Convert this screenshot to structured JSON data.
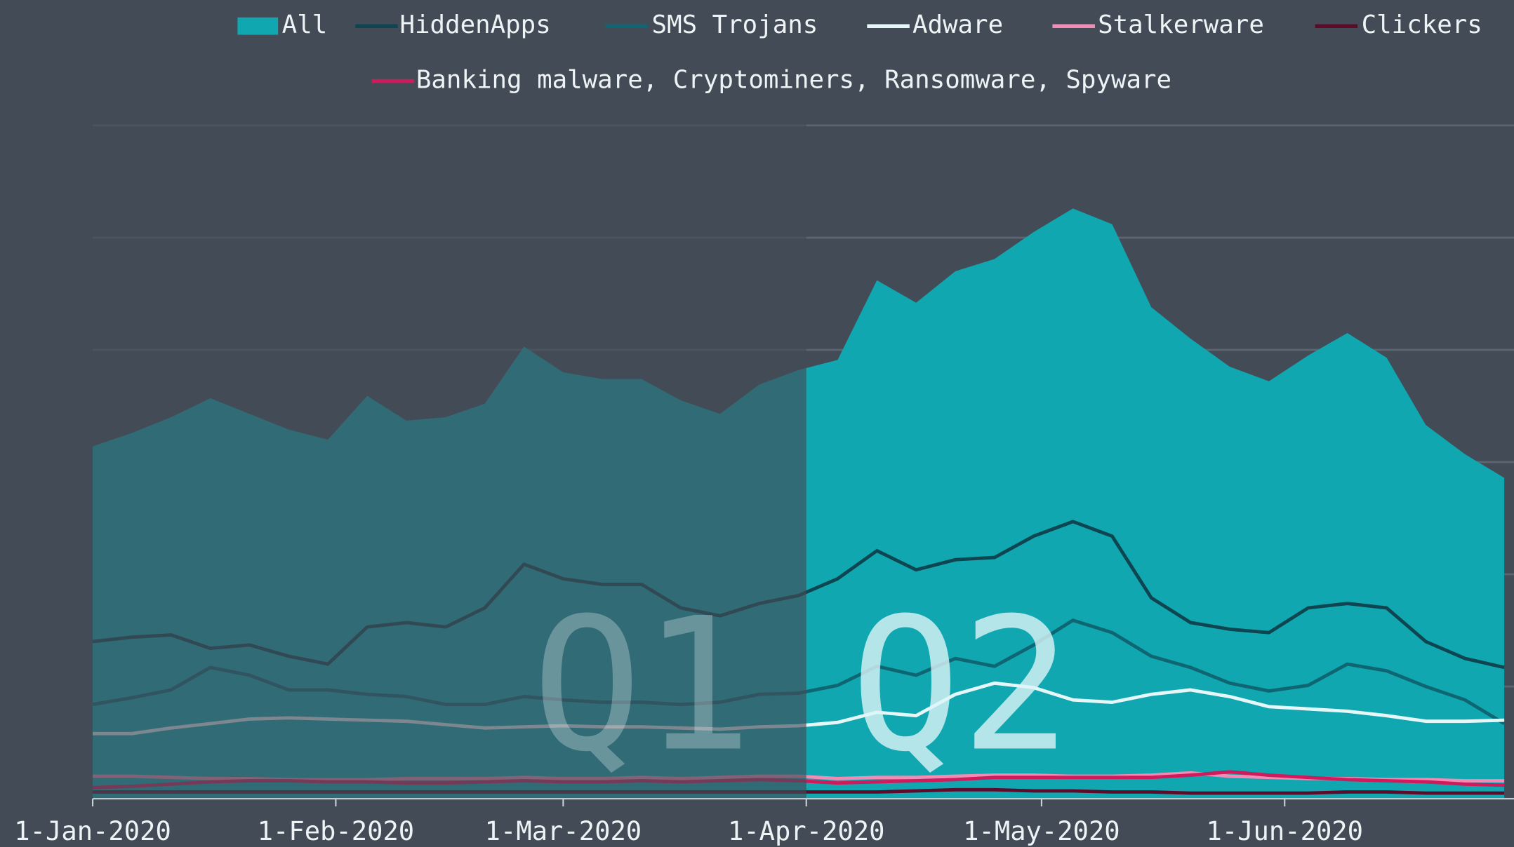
{
  "chart_data": {
    "type": "line",
    "x": [
      "2020-01-01",
      "2020-01-06",
      "2020-01-11",
      "2020-01-16",
      "2020-01-21",
      "2020-01-26",
      "2020-01-31",
      "2020-02-05",
      "2020-02-10",
      "2020-02-15",
      "2020-02-20",
      "2020-02-25",
      "2020-03-01",
      "2020-03-06",
      "2020-03-11",
      "2020-03-16",
      "2020-03-21",
      "2020-03-26",
      "2020-03-31",
      "2020-04-05",
      "2020-04-10",
      "2020-04-15",
      "2020-04-20",
      "2020-04-25",
      "2020-04-30",
      "2020-05-05",
      "2020-05-10",
      "2020-05-15",
      "2020-05-20",
      "2020-05-25",
      "2020-05-30",
      "2020-06-04",
      "2020-06-09",
      "2020-06-14",
      "2020-06-19",
      "2020-06-24",
      "2020-06-29"
    ],
    "series": [
      {
        "name": "All",
        "color": "#11a7b1",
        "fill": true,
        "values": [
          3.14,
          3.26,
          3.4,
          3.57,
          3.43,
          3.29,
          3.2,
          3.59,
          3.37,
          3.4,
          3.52,
          4.03,
          3.8,
          3.74,
          3.74,
          3.55,
          3.43,
          3.69,
          3.82,
          3.91,
          4.62,
          4.42,
          4.7,
          4.81,
          5.05,
          5.26,
          5.12,
          4.38,
          4.1,
          3.85,
          3.72,
          3.95,
          4.15,
          3.93,
          3.33,
          3.07,
          2.86
        ]
      },
      {
        "name": "HiddenApps",
        "color": "#0d4650",
        "values": [
          1.4,
          1.44,
          1.46,
          1.34,
          1.37,
          1.27,
          1.2,
          1.53,
          1.57,
          1.53,
          1.7,
          2.09,
          1.96,
          1.91,
          1.91,
          1.7,
          1.63,
          1.74,
          1.81,
          1.96,
          2.21,
          2.04,
          2.13,
          2.15,
          2.34,
          2.47,
          2.34,
          1.79,
          1.57,
          1.51,
          1.48,
          1.7,
          1.74,
          1.7,
          1.4,
          1.25,
          1.17
        ]
      },
      {
        "name": "SMS Trojans",
        "color": "#0e6672",
        "values": [
          0.84,
          0.9,
          0.97,
          1.17,
          1.1,
          0.97,
          0.97,
          0.93,
          0.91,
          0.84,
          0.84,
          0.91,
          0.88,
          0.86,
          0.86,
          0.84,
          0.86,
          0.93,
          0.94,
          1.01,
          1.18,
          1.1,
          1.25,
          1.18,
          1.37,
          1.59,
          1.48,
          1.27,
          1.17,
          1.03,
          0.96,
          1.01,
          1.2,
          1.14,
          1.0,
          0.88,
          0.67
        ]
      },
      {
        "name": "Adware",
        "color": "#e6f7f8",
        "values": [
          0.58,
          0.58,
          0.63,
          0.67,
          0.71,
          0.72,
          0.71,
          0.7,
          0.69,
          0.66,
          0.63,
          0.64,
          0.65,
          0.64,
          0.64,
          0.63,
          0.62,
          0.64,
          0.65,
          0.68,
          0.77,
          0.74,
          0.93,
          1.03,
          0.99,
          0.88,
          0.86,
          0.93,
          0.97,
          0.91,
          0.82,
          0.8,
          0.78,
          0.74,
          0.69,
          0.69,
          0.7
        ]
      },
      {
        "name": "Stalkerware",
        "color": "#f28cb5",
        "values": [
          0.2,
          0.2,
          0.19,
          0.18,
          0.18,
          0.17,
          0.17,
          0.17,
          0.18,
          0.18,
          0.18,
          0.19,
          0.18,
          0.18,
          0.19,
          0.18,
          0.19,
          0.2,
          0.2,
          0.18,
          0.19,
          0.19,
          0.2,
          0.21,
          0.21,
          0.2,
          0.2,
          0.21,
          0.23,
          0.2,
          0.19,
          0.18,
          0.18,
          0.17,
          0.17,
          0.16,
          0.16
        ]
      },
      {
        "name": "Clickers",
        "color": "#5e0a2a",
        "values": [
          0.06,
          0.06,
          0.06,
          0.06,
          0.06,
          0.06,
          0.06,
          0.06,
          0.06,
          0.06,
          0.06,
          0.06,
          0.06,
          0.06,
          0.06,
          0.06,
          0.06,
          0.06,
          0.06,
          0.06,
          0.06,
          0.07,
          0.08,
          0.08,
          0.07,
          0.07,
          0.06,
          0.06,
          0.05,
          0.05,
          0.05,
          0.05,
          0.06,
          0.06,
          0.05,
          0.05,
          0.05
        ]
      },
      {
        "name": "Banking malware, Cryptominers, Ransomware, Spyware",
        "color": "#d01a5b",
        "values": [
          0.1,
          0.11,
          0.13,
          0.15,
          0.16,
          0.16,
          0.15,
          0.15,
          0.14,
          0.14,
          0.15,
          0.16,
          0.15,
          0.15,
          0.16,
          0.15,
          0.16,
          0.17,
          0.16,
          0.14,
          0.15,
          0.16,
          0.17,
          0.19,
          0.19,
          0.19,
          0.19,
          0.19,
          0.21,
          0.24,
          0.21,
          0.19,
          0.17,
          0.16,
          0.15,
          0.13,
          0.12
        ]
      }
    ],
    "xlim": [
      "2020-01-01",
      "2020-06-30"
    ],
    "xticks": [
      {
        "value": "2020-01-01",
        "label": "1-Jan-2020"
      },
      {
        "value": "2020-02-01",
        "label": "1-Feb-2020"
      },
      {
        "value": "2020-03-01",
        "label": "1-Mar-2020"
      },
      {
        "value": "2020-04-01",
        "label": "1-Apr-2020"
      },
      {
        "value": "2020-05-01",
        "label": "1-May-2020"
      },
      {
        "value": "2020-06-01",
        "label": "1-Jun-2020"
      }
    ],
    "ylim": [
      0,
      6
    ],
    "yticks": [
      0,
      1,
      2,
      3,
      4,
      5,
      6
    ],
    "grid": true,
    "periods": [
      {
        "label": "Q1",
        "from": "2020-01-01",
        "to": "2020-04-01",
        "shaded": true
      },
      {
        "label": "Q2",
        "from": "2020-04-01",
        "to": "2020-06-30",
        "shaded": false
      }
    ]
  }
}
